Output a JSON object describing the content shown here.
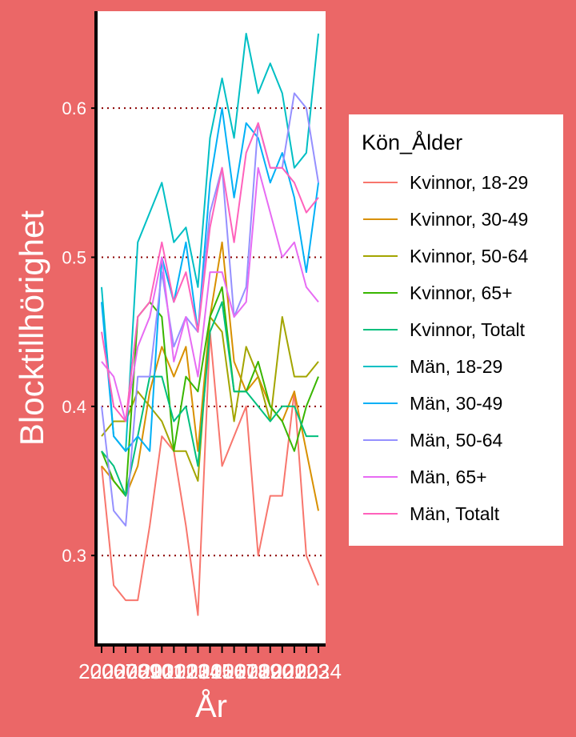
{
  "chart_data": {
    "type": "line",
    "xlabel": "År",
    "ylabel": "Blocktillhörighet",
    "legend_title": "Kön_Ålder",
    "legend_position": "right",
    "grid": "major y, dotted red",
    "xlim": [
      2006,
      2024
    ],
    "ylim": [
      0.24,
      0.665
    ],
    "y_ticks": [
      0.3,
      0.4,
      0.5,
      0.6
    ],
    "y_tick_labels": [
      "0.3",
      "0.4",
      "0.5",
      "0.6"
    ],
    "x": [
      2006,
      2007,
      2008,
      2009,
      2010,
      2011,
      2012,
      2013,
      2014,
      2015,
      2016,
      2017,
      2018,
      2019,
      2020,
      2021,
      2022,
      2023,
      2024
    ],
    "x_tick_labels": [
      "2006",
      "2007",
      "2008",
      "2009",
      "2010",
      "2011",
      "2012",
      "2013",
      "2014",
      "2015",
      "2016",
      "2017",
      "2018",
      "2019",
      "2020",
      "2021",
      "2022",
      "2023",
      "2024"
    ],
    "series": [
      {
        "name": "Kvinnor, 18-29",
        "color": "#F8766D",
        "values": [
          0.36,
          0.28,
          0.27,
          0.27,
          0.32,
          0.38,
          0.37,
          0.32,
          0.26,
          0.45,
          0.36,
          0.38,
          0.4,
          0.3,
          0.34,
          0.34,
          0.41,
          0.3,
          0.28
        ]
      },
      {
        "name": "Kvinnor, 30-49",
        "color": "#D89000",
        "values": [
          0.36,
          0.35,
          0.34,
          0.36,
          0.41,
          0.44,
          0.42,
          0.44,
          0.37,
          0.46,
          0.51,
          0.43,
          0.41,
          0.42,
          0.4,
          0.39,
          0.41,
          0.37,
          0.33
        ]
      },
      {
        "name": "Kvinnor, 50-64",
        "color": "#A3A500",
        "values": [
          0.38,
          0.39,
          0.39,
          0.41,
          0.4,
          0.39,
          0.37,
          0.37,
          0.35,
          0.46,
          0.45,
          0.39,
          0.44,
          0.42,
          0.39,
          0.46,
          0.42,
          0.42,
          0.43
        ]
      },
      {
        "name": "Kvinnor, 65+",
        "color": "#39B600",
        "values": [
          0.37,
          0.35,
          0.34,
          0.46,
          0.47,
          0.46,
          0.37,
          0.42,
          0.41,
          0.46,
          0.48,
          0.41,
          0.41,
          0.43,
          0.4,
          0.39,
          0.37,
          0.4,
          0.42
        ]
      },
      {
        "name": "Kvinnor, Totalt",
        "color": "#00BF7D",
        "values": [
          0.37,
          0.36,
          0.34,
          0.38,
          0.42,
          0.42,
          0.39,
          0.4,
          0.36,
          0.45,
          0.47,
          0.41,
          0.41,
          0.4,
          0.39,
          0.4,
          0.4,
          0.38,
          0.38
        ]
      },
      {
        "name": "Män, 18-29",
        "color": "#00BFC4",
        "values": [
          0.48,
          0.38,
          0.37,
          0.51,
          0.53,
          0.55,
          0.51,
          0.52,
          0.48,
          0.58,
          0.62,
          0.58,
          0.65,
          0.61,
          0.63,
          0.61,
          0.56,
          0.57,
          0.65
        ]
      },
      {
        "name": "Män, 30-49",
        "color": "#00B0F6",
        "values": [
          0.47,
          0.38,
          0.37,
          0.38,
          0.37,
          0.5,
          0.47,
          0.51,
          0.45,
          0.55,
          0.6,
          0.54,
          0.59,
          0.58,
          0.55,
          0.57,
          0.54,
          0.49,
          0.55
        ]
      },
      {
        "name": "Män, 50-64",
        "color": "#9590FF",
        "values": [
          0.4,
          0.33,
          0.32,
          0.42,
          0.42,
          0.49,
          0.44,
          0.46,
          0.45,
          0.53,
          0.56,
          0.46,
          0.48,
          0.59,
          0.56,
          0.56,
          0.61,
          0.6,
          0.55
        ]
      },
      {
        "name": "Män, 65+",
        "color": "#E76BF3",
        "values": [
          0.43,
          0.42,
          0.39,
          0.44,
          0.46,
          0.5,
          0.43,
          0.46,
          0.42,
          0.49,
          0.49,
          0.46,
          0.47,
          0.56,
          0.53,
          0.5,
          0.51,
          0.48,
          0.47
        ]
      },
      {
        "name": "Män, Totalt",
        "color": "#FF62BC",
        "values": [
          0.45,
          0.4,
          0.39,
          0.46,
          0.47,
          0.51,
          0.47,
          0.49,
          0.45,
          0.52,
          0.56,
          0.51,
          0.57,
          0.59,
          0.56,
          0.56,
          0.55,
          0.53,
          0.54
        ]
      }
    ]
  },
  "colors": {
    "page_background": "#EB6767",
    "panel_background": "#FFFFFF",
    "gridline": "#8B0000",
    "axis_line": "#000000",
    "text": "#FFFFFF"
  }
}
